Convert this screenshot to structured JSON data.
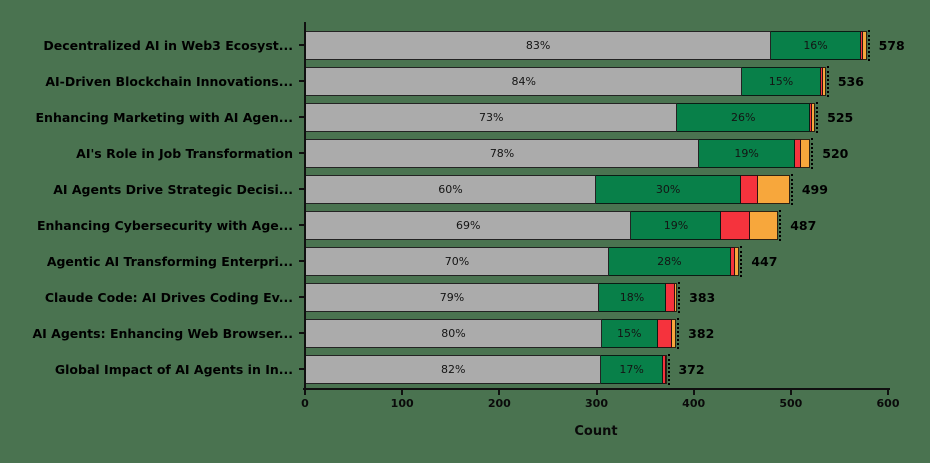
{
  "chart_data": {
    "type": "bar",
    "orientation": "horizontal",
    "stacked": true,
    "title": "",
    "xlabel": "Count",
    "ylabel": "",
    "xlim": [
      0,
      600
    ],
    "xticks": [
      "0",
      "100",
      "200",
      "300",
      "400",
      "500",
      "600"
    ],
    "grid": false,
    "legend": "none",
    "colors": {
      "background": "#4A7350",
      "segment_gray": "#ABABAB",
      "segment_green": "#088049",
      "segment_red": "#F5333D",
      "segment_orange": "#F7A73C",
      "bar_edge": "#141414",
      "text": "#000000"
    },
    "bars": [
      {
        "label": "Decentralized AI in Web3 Ecosyst...",
        "total": 578,
        "total_label": "578",
        "segments": [
          {
            "color": "gray",
            "pct": 83,
            "text": "83%"
          },
          {
            "color": "green",
            "pct": 16,
            "text": "16%"
          },
          {
            "color": "red",
            "pct": 0.45,
            "text": ""
          },
          {
            "color": "orange",
            "pct": 0.55,
            "text": ""
          }
        ]
      },
      {
        "label": "AI-Driven Blockchain Innovations...",
        "total": 536,
        "total_label": "536",
        "segments": [
          {
            "color": "gray",
            "pct": 84,
            "text": "84%"
          },
          {
            "color": "green",
            "pct": 15,
            "text": "15%"
          },
          {
            "color": "red",
            "pct": 0.5,
            "text": ""
          },
          {
            "color": "orange",
            "pct": 0.5,
            "text": ""
          }
        ]
      },
      {
        "label": "Enhancing Marketing with AI Agen...",
        "total": 525,
        "total_label": "525",
        "segments": [
          {
            "color": "gray",
            "pct": 73,
            "text": "73%"
          },
          {
            "color": "green",
            "pct": 26,
            "text": "26%"
          },
          {
            "color": "red",
            "pct": 0.45,
            "text": ""
          },
          {
            "color": "orange",
            "pct": 0.55,
            "text": ""
          }
        ]
      },
      {
        "label": "AI's Role in Job Transformation",
        "total": 520,
        "total_label": "520",
        "segments": [
          {
            "color": "gray",
            "pct": 78,
            "text": "78%"
          },
          {
            "color": "green",
            "pct": 19,
            "text": "19%"
          },
          {
            "color": "red",
            "pct": 1.2,
            "text": ""
          },
          {
            "color": "orange",
            "pct": 1.8,
            "text": ""
          }
        ]
      },
      {
        "label": "AI Agents Drive Strategic Decisi...",
        "total": 499,
        "total_label": "499",
        "segments": [
          {
            "color": "gray",
            "pct": 60,
            "text": "60%"
          },
          {
            "color": "green",
            "pct": 30,
            "text": "30%"
          },
          {
            "color": "red",
            "pct": 3.5,
            "text": ""
          },
          {
            "color": "orange",
            "pct": 6.5,
            "text": ""
          }
        ]
      },
      {
        "label": "Enhancing Cybersecurity with Age...",
        "total": 487,
        "total_label": "487",
        "segments": [
          {
            "color": "gray",
            "pct": 69,
            "text": "69%"
          },
          {
            "color": "green",
            "pct": 19,
            "text": "19%"
          },
          {
            "color": "red",
            "pct": 6,
            "text": ""
          },
          {
            "color": "orange",
            "pct": 6,
            "text": ""
          }
        ]
      },
      {
        "label": "Agentic AI Transforming Enterpri...",
        "total": 447,
        "total_label": "447",
        "segments": [
          {
            "color": "gray",
            "pct": 70,
            "text": "70%"
          },
          {
            "color": "green",
            "pct": 28,
            "text": "28%"
          },
          {
            "color": "red",
            "pct": 0.9,
            "text": ""
          },
          {
            "color": "orange",
            "pct": 1.1,
            "text": ""
          }
        ]
      },
      {
        "label": "Claude Code: AI Drives Coding Ev...",
        "total": 383,
        "total_label": "383",
        "segments": [
          {
            "color": "gray",
            "pct": 79,
            "text": "79%"
          },
          {
            "color": "green",
            "pct": 18,
            "text": "18%"
          },
          {
            "color": "red",
            "pct": 2.5,
            "text": ""
          },
          {
            "color": "orange",
            "pct": 0.5,
            "text": ""
          }
        ]
      },
      {
        "label": "AI Agents: Enhancing Web Browser...",
        "total": 382,
        "total_label": "382",
        "segments": [
          {
            "color": "gray",
            "pct": 80,
            "text": "80%"
          },
          {
            "color": "green",
            "pct": 15,
            "text": "15%"
          },
          {
            "color": "red",
            "pct": 4,
            "text": ""
          },
          {
            "color": "orange",
            "pct": 1,
            "text": ""
          }
        ]
      },
      {
        "label": "Global Impact of AI Agents in In...",
        "total": 372,
        "total_label": "372",
        "segments": [
          {
            "color": "gray",
            "pct": 82,
            "text": "82%"
          },
          {
            "color": "green",
            "pct": 17,
            "text": ""
          },
          {
            "color": "red",
            "pct": 0.8,
            "text": ""
          },
          {
            "color": "orange",
            "pct": 0.2,
            "text": ""
          }
        ]
      }
    ]
  }
}
